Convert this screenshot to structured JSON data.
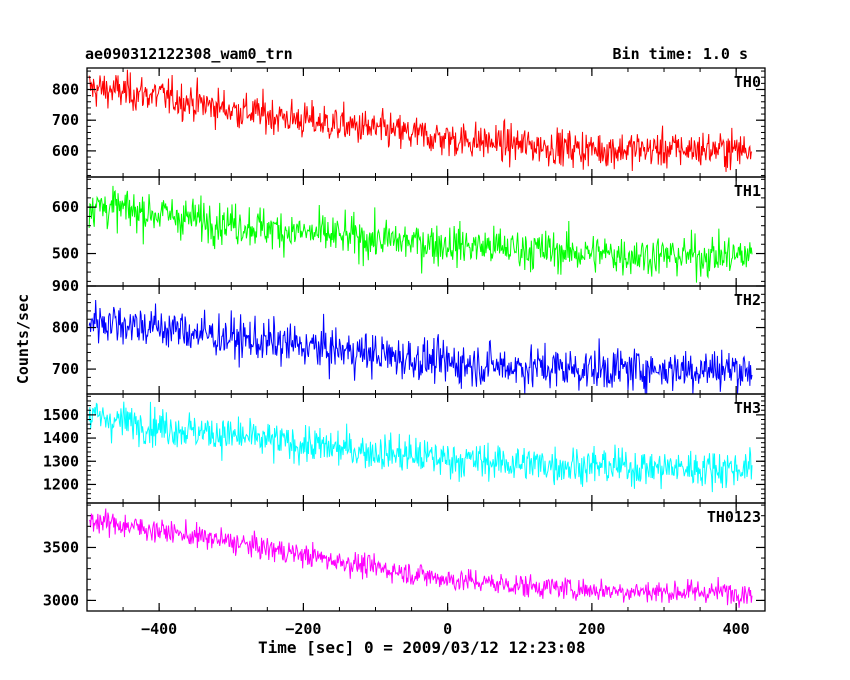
{
  "header": {
    "title": "ae090312122308_wam0_trn",
    "bin_time": "Bin time: 1.0 s"
  },
  "chart_data": {
    "type": "line",
    "title": "ae090312122308_wam0_trn",
    "subtitle": "Bin time: 1.0 s",
    "xlabel": "Time [sec] 0 = 2009/03/12 12:23:08",
    "ylabel": "Counts/sec",
    "xlim": [
      -500,
      440
    ],
    "x_ticks": [
      -400,
      -200,
      0,
      200,
      400
    ],
    "x_range_data": [
      -497,
      422
    ],
    "bin_seconds": 1.0,
    "panels": [
      {
        "name": "TH0",
        "color": "#ff0000",
        "ylim": [
          515,
          870
        ],
        "y_ticks": [
          600,
          700,
          800
        ],
        "trend": [
          [
            -497,
            805
          ],
          [
            -400,
            780
          ],
          [
            -300,
            735
          ],
          [
            -200,
            700
          ],
          [
            -100,
            670
          ],
          [
            0,
            640
          ],
          [
            100,
            620
          ],
          [
            200,
            605
          ],
          [
            300,
            605
          ],
          [
            422,
            605
          ]
        ],
        "noise_std": 30
      },
      {
        "name": "TH1",
        "color": "#00ff00",
        "ylim": [
          430,
          665
        ],
        "y_ticks": [
          500,
          600
        ],
        "trend": [
          [
            -497,
            605
          ],
          [
            -400,
            585
          ],
          [
            -300,
            565
          ],
          [
            -200,
            545
          ],
          [
            -100,
            530
          ],
          [
            0,
            520
          ],
          [
            100,
            510
          ],
          [
            200,
            500
          ],
          [
            300,
            495
          ],
          [
            422,
            495
          ]
        ],
        "noise_std": 22
      },
      {
        "name": "TH2",
        "color": "#0000ff",
        "ylim": [
          640,
          900
        ],
        "y_ticks": [
          700,
          800,
          900
        ],
        "trend": [
          [
            -497,
            820
          ],
          [
            -400,
            800
          ],
          [
            -300,
            775
          ],
          [
            -200,
            755
          ],
          [
            -100,
            735
          ],
          [
            0,
            715
          ],
          [
            100,
            705
          ],
          [
            200,
            700
          ],
          [
            300,
            700
          ],
          [
            422,
            700
          ]
        ],
        "noise_std": 26
      },
      {
        "name": "TH3",
        "color": "#00ffff",
        "ylim": [
          1120,
          1590
        ],
        "y_ticks": [
          1200,
          1300,
          1400,
          1500
        ],
        "trend": [
          [
            -497,
            1495
          ],
          [
            -400,
            1450
          ],
          [
            -300,
            1410
          ],
          [
            -200,
            1370
          ],
          [
            -100,
            1340
          ],
          [
            0,
            1310
          ],
          [
            100,
            1290
          ],
          [
            200,
            1280
          ],
          [
            300,
            1270
          ],
          [
            422,
            1270
          ]
        ],
        "noise_std": 40
      },
      {
        "name": "TH0123",
        "color": "#ff00ff",
        "ylim": [
          2900,
          3920
        ],
        "y_ticks": [
          3000,
          3500
        ],
        "trend": [
          [
            -497,
            3760
          ],
          [
            -400,
            3660
          ],
          [
            -300,
            3550
          ],
          [
            -200,
            3430
          ],
          [
            -100,
            3310
          ],
          [
            0,
            3200
          ],
          [
            100,
            3140
          ],
          [
            200,
            3100
          ],
          [
            300,
            3080
          ],
          [
            422,
            3080
          ]
        ],
        "noise_std": 55
      }
    ]
  }
}
